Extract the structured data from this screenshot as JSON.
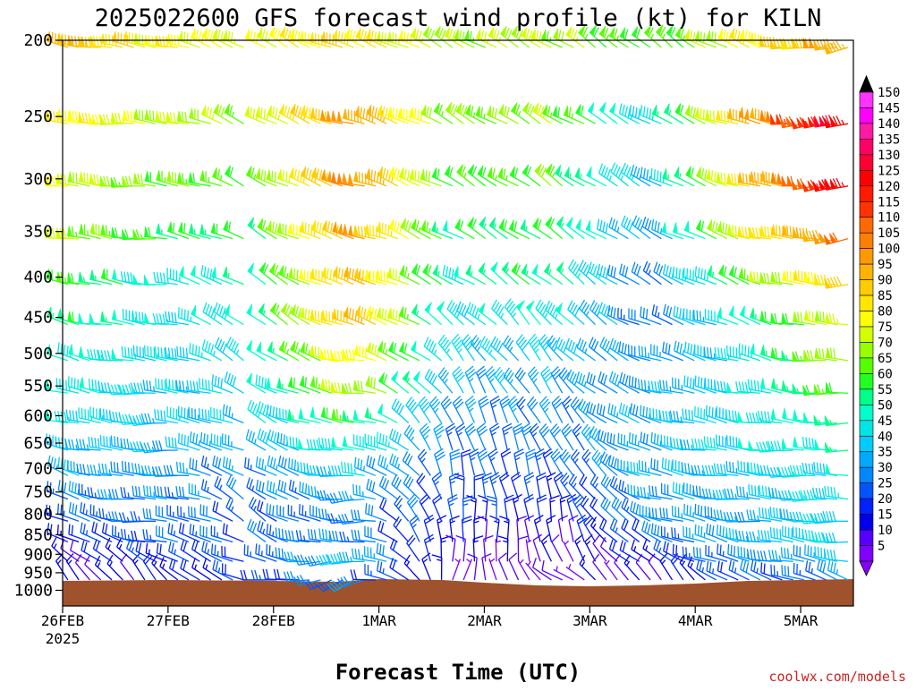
{
  "chart_data": {
    "type": "wind-barb-profile",
    "title": "2025022600 GFS forecast wind profile (kt) for KILN",
    "xlabel": "Forecast Time (UTC)",
    "ylabel": "",
    "source_label": "coolwx.com/models",
    "x_axis": {
      "start": "2025-02-26T00Z",
      "end": "2025-03-05T12Z",
      "ticks": [
        {
          "label": "26FEB",
          "sublabel": "2025",
          "day": 0
        },
        {
          "label": "27FEB",
          "day": 1
        },
        {
          "label": "28FEB",
          "day": 2
        },
        {
          "label": "1MAR",
          "day": 3
        },
        {
          "label": "2MAR",
          "day": 4
        },
        {
          "label": "3MAR",
          "day": 5
        },
        {
          "label": "4MAR",
          "day": 6
        },
        {
          "label": "5MAR",
          "day": 7
        }
      ]
    },
    "y_axis": {
      "scale": "log",
      "inverted": true,
      "ylim": [
        1000,
        200
      ],
      "ticks": [
        200,
        250,
        300,
        350,
        400,
        450,
        500,
        550,
        600,
        650,
        700,
        750,
        800,
        850,
        900,
        950,
        1000
      ]
    },
    "legend": {
      "placement": "right",
      "levels": [
        150,
        145,
        140,
        135,
        130,
        125,
        120,
        115,
        110,
        105,
        100,
        95,
        90,
        85,
        80,
        75,
        70,
        65,
        60,
        55,
        50,
        45,
        40,
        35,
        30,
        25,
        20,
        15,
        10,
        5
      ],
      "colors": [
        "#ff33ff",
        "#ff00ff",
        "#ff1aa3",
        "#ff0066",
        "#ff0033",
        "#ff0000",
        "#ff1a00",
        "#ff3300",
        "#ff6a00",
        "#ff7f00",
        "#ff9900",
        "#ffb300",
        "#ffcc00",
        "#ffe600",
        "#ffff00",
        "#d4ff00",
        "#99ff00",
        "#55ff00",
        "#22ff22",
        "#00ff88",
        "#00ffcc",
        "#00e6e6",
        "#00ccff",
        "#00aaff",
        "#0088ff",
        "#0055ff",
        "#0022ff",
        "#0000ee",
        "#5500ff",
        "#8000ff"
      ]
    },
    "colors": {
      "ground": "#a0522d",
      "frame": "#000000"
    },
    "speed_profile_kt": {
      "200": [
        95,
        80,
        78,
        85,
        70,
        72,
        60,
        80,
        100
      ],
      "250": [
        85,
        72,
        70,
        100,
        65,
        70,
        40,
        95,
        130
      ],
      "300": [
        78,
        65,
        62,
        105,
        60,
        65,
        35,
        90,
        125
      ],
      "350": [
        72,
        58,
        55,
        100,
        55,
        60,
        30,
        80,
        105
      ],
      "400": [
        65,
        48,
        50,
        95,
        50,
        55,
        25,
        65,
        90
      ],
      "450": [
        58,
        45,
        48,
        95,
        45,
        48,
        25,
        50,
        80
      ],
      "500": [
        52,
        42,
        45,
        85,
        40,
        40,
        30,
        45,
        75
      ],
      "550": [
        48,
        40,
        42,
        75,
        35,
        35,
        32,
        45,
        65
      ],
      "600": [
        45,
        38,
        40,
        60,
        30,
        30,
        35,
        45,
        55
      ],
      "650": [
        40,
        36,
        35,
        50,
        28,
        28,
        35,
        45,
        50
      ],
      "700": [
        35,
        32,
        30,
        40,
        25,
        25,
        35,
        40,
        45
      ],
      "750": [
        30,
        30,
        28,
        35,
        22,
        20,
        32,
        38,
        45
      ],
      "800": [
        25,
        28,
        25,
        30,
        20,
        18,
        30,
        35,
        45
      ],
      "850": [
        18,
        25,
        25,
        30,
        15,
        12,
        25,
        35,
        45
      ],
      "900": [
        12,
        20,
        22,
        40,
        10,
        10,
        18,
        30,
        40
      ],
      "950": [
        10,
        15,
        20,
        30,
        8,
        8,
        12,
        25,
        30
      ],
      "1000": [
        5,
        10,
        15,
        20,
        5,
        5,
        10,
        20,
        25
      ]
    },
    "direction_profile_deg": {
      "200": [
        280,
        280,
        300,
        290,
        300,
        300,
        310,
        290,
        250
      ],
      "250": [
        275,
        275,
        300,
        285,
        300,
        300,
        300,
        285,
        250
      ],
      "300": [
        275,
        275,
        300,
        285,
        300,
        305,
        300,
        285,
        255
      ],
      "350": [
        280,
        275,
        300,
        285,
        300,
        305,
        300,
        285,
        260
      ],
      "400": [
        285,
        275,
        305,
        285,
        300,
        310,
        300,
        290,
        265
      ],
      "450": [
        285,
        275,
        310,
        285,
        310,
        320,
        290,
        290,
        270
      ],
      "500": [
        285,
        275,
        310,
        275,
        320,
        320,
        290,
        285,
        270
      ],
      "550": [
        285,
        270,
        300,
        275,
        330,
        325,
        285,
        280,
        270
      ],
      "600": [
        285,
        270,
        300,
        275,
        340,
        330,
        285,
        280,
        270
      ],
      "650": [
        285,
        270,
        300,
        270,
        345,
        335,
        285,
        275,
        270
      ],
      "700": [
        290,
        270,
        300,
        270,
        350,
        340,
        285,
        275,
        270
      ],
      "750": [
        290,
        270,
        310,
        265,
        355,
        340,
        285,
        275,
        270
      ],
      "800": [
        295,
        270,
        310,
        265,
        0,
        350,
        290,
        275,
        270
      ],
      "850": [
        300,
        280,
        300,
        265,
        5,
        350,
        295,
        280,
        275
      ],
      "900": [
        310,
        300,
        290,
        255,
        10,
        340,
        300,
        280,
        280
      ],
      "950": [
        320,
        320,
        280,
        240,
        20,
        300,
        330,
        290,
        290
      ],
      "1000": [
        330,
        320,
        260,
        220,
        30,
        280,
        350,
        300,
        300
      ]
    },
    "data_gap_day": 1.85
  }
}
